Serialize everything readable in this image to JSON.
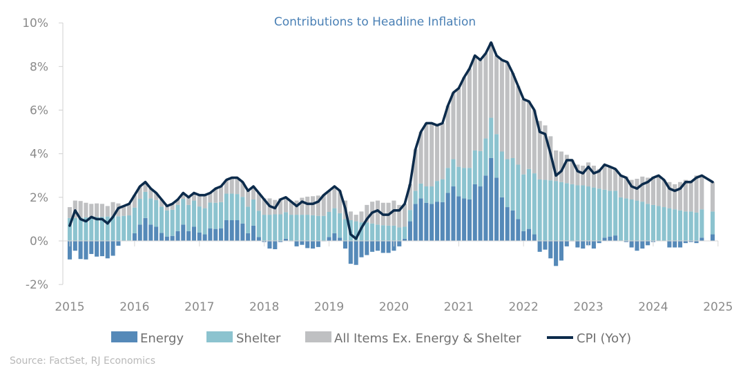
{
  "chart_data": {
    "type": "bar",
    "title": "Contributions to Headline Inflation",
    "source": "Source: FactSet, RJ Economics",
    "x_start": "2015-01",
    "frequency": "monthly",
    "x_tick_labels": [
      "2015",
      "2016",
      "2017",
      "2018",
      "2019",
      "2020",
      "2021",
      "2022",
      "2023",
      "2024",
      "2025"
    ],
    "y_tick_labels": [
      "-2%",
      "0%",
      "2%",
      "4%",
      "6%",
      "8%",
      "10%"
    ],
    "y_ticks": [
      -2,
      0,
      2,
      4,
      6,
      8,
      10
    ],
    "ylim": [
      -2,
      10
    ],
    "grid": false,
    "legend_position": "bottom",
    "colors": {
      "energy": "#5589b8",
      "shelter": "#8cc3cf",
      "other": "#bfc0c2",
      "cpi": "#0c2b4b"
    },
    "series": [
      {
        "name": "Energy",
        "kind": "stacked-bar",
        "values": [
          -0.85,
          -0.45,
          -0.83,
          -0.85,
          -0.6,
          -0.72,
          -0.7,
          -0.8,
          -0.68,
          -0.22,
          0.0,
          0.02,
          0.35,
          0.75,
          1.05,
          0.75,
          0.65,
          0.37,
          0.2,
          0.23,
          0.45,
          0.75,
          0.45,
          0.65,
          0.38,
          0.3,
          0.58,
          0.55,
          0.58,
          0.95,
          0.95,
          0.95,
          0.8,
          0.35,
          0.7,
          0.18,
          -0.05,
          -0.35,
          -0.38,
          -0.05,
          0.1,
          -0.02,
          -0.25,
          -0.18,
          -0.33,
          -0.35,
          -0.28,
          -0.02,
          0.18,
          0.35,
          0.15,
          -0.35,
          -1.05,
          -1.1,
          -0.75,
          -0.65,
          -0.5,
          -0.45,
          -0.55,
          -0.55,
          -0.45,
          -0.25,
          0.1,
          0.9,
          1.7,
          1.95,
          1.75,
          1.7,
          1.8,
          1.78,
          2.2,
          2.5,
          2.05,
          1.95,
          1.9,
          2.6,
          2.5,
          3.0,
          3.8,
          2.9,
          2.0,
          1.55,
          1.4,
          1.0,
          0.45,
          0.55,
          0.3,
          -0.5,
          -0.4,
          -0.8,
          -1.15,
          -0.9,
          -0.25,
          -0.02,
          -0.3,
          -0.35,
          -0.2,
          -0.35,
          -0.1,
          0.15,
          0.2,
          0.25,
          0.0,
          -0.05,
          -0.3,
          -0.45,
          -0.35,
          -0.2,
          -0.05,
          0.0,
          0.0,
          -0.3,
          -0.3,
          -0.3,
          -0.1,
          -0.05,
          -0.1,
          0.15,
          null,
          0.3
        ]
      },
      {
        "name": "Shelter",
        "kind": "stacked-bar",
        "values": [
          1.05,
          1.05,
          1.07,
          1.08,
          1.08,
          1.1,
          1.1,
          1.12,
          1.12,
          1.13,
          1.15,
          1.15,
          1.18,
          1.18,
          1.2,
          1.2,
          1.22,
          1.2,
          1.2,
          1.2,
          1.2,
          1.18,
          1.2,
          1.2,
          1.2,
          1.2,
          1.18,
          1.2,
          1.2,
          1.22,
          1.22,
          1.2,
          1.22,
          1.22,
          1.2,
          1.2,
          1.2,
          1.2,
          1.22,
          1.22,
          1.22,
          1.2,
          1.2,
          1.2,
          1.2,
          1.18,
          1.15,
          1.15,
          1.15,
          1.15,
          1.12,
          1.0,
          0.95,
          0.9,
          0.85,
          0.85,
          0.8,
          0.75,
          0.72,
          0.7,
          0.7,
          0.62,
          0.55,
          0.52,
          0.6,
          0.68,
          0.75,
          0.8,
          0.95,
          1.05,
          1.15,
          1.25,
          1.35,
          1.4,
          1.45,
          1.55,
          1.62,
          1.7,
          1.85,
          2.0,
          2.1,
          2.2,
          2.4,
          2.5,
          2.6,
          2.75,
          2.8,
          2.82,
          2.8,
          2.78,
          2.75,
          2.7,
          2.65,
          2.6,
          2.55,
          2.55,
          2.5,
          2.45,
          2.4,
          2.2,
          2.1,
          2.05,
          2.0,
          1.95,
          1.9,
          1.85,
          1.8,
          1.7,
          1.65,
          1.6,
          1.55,
          1.5,
          1.45,
          1.4,
          1.35,
          1.35,
          1.3,
          1.3,
          null,
          1.05
        ]
      },
      {
        "name": "All Items Ex. Energy & Shelter",
        "kind": "stacked-bar",
        "derived": "CPI minus Energy minus Shelter"
      },
      {
        "name": "CPI (YoY)",
        "kind": "line",
        "values": [
          0.7,
          1.4,
          1.0,
          0.9,
          1.1,
          1.0,
          1.0,
          0.8,
          1.1,
          1.5,
          1.6,
          1.7,
          2.1,
          2.5,
          2.7,
          2.4,
          2.2,
          1.9,
          1.6,
          1.7,
          1.9,
          2.2,
          2.0,
          2.2,
          2.1,
          2.1,
          2.2,
          2.4,
          2.5,
          2.8,
          2.9,
          2.9,
          2.7,
          2.3,
          2.5,
          2.2,
          1.9,
          1.6,
          1.5,
          1.9,
          2.0,
          1.8,
          1.6,
          1.8,
          1.7,
          1.7,
          1.8,
          2.1,
          2.3,
          2.5,
          2.3,
          1.5,
          0.3,
          0.1,
          0.6,
          1.0,
          1.3,
          1.4,
          1.2,
          1.2,
          1.4,
          1.4,
          1.7,
          2.6,
          4.2,
          5.0,
          5.4,
          5.4,
          5.3,
          5.4,
          6.2,
          6.8,
          7.0,
          7.5,
          7.9,
          8.5,
          8.3,
          8.6,
          9.1,
          8.5,
          8.3,
          8.2,
          7.7,
          7.1,
          6.5,
          6.4,
          6.0,
          5.0,
          4.9,
          4.0,
          3.0,
          3.2,
          3.7,
          3.7,
          3.2,
          3.1,
          3.4,
          3.1,
          3.2,
          3.5,
          3.4,
          3.3,
          3.0,
          2.9,
          2.5,
          2.4,
          2.6,
          2.7,
          2.9,
          3.0,
          2.8,
          2.4,
          2.3,
          2.4,
          2.7,
          2.7,
          2.9,
          3.0,
          null,
          2.7
        ]
      }
    ]
  }
}
